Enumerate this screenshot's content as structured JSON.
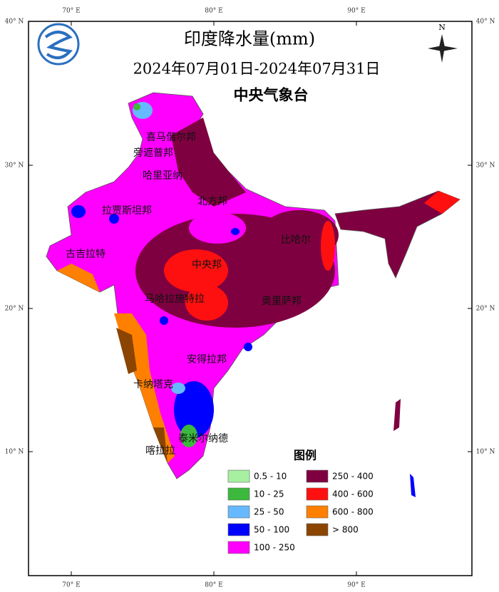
{
  "header": {
    "title": "印度降水量(mm)",
    "period": "2024年07月01日-2024年07月31日",
    "agency": "中央气象台"
  },
  "compass": "N",
  "graticule": {
    "top": [
      "70° E",
      "80° E",
      "90° E"
    ],
    "bottom": [
      "70° E",
      "80° E",
      "90° E"
    ],
    "left": [
      "40° N",
      "30° N",
      "20° N",
      "10° N"
    ],
    "right": [
      "40° N",
      "30° N",
      "20° N",
      "10° N"
    ]
  },
  "regions": [
    "喜马偕尔邦",
    "旁遮普邦",
    "哈里亚纳",
    "拉贾斯坦邦",
    "北方邦",
    "比哈尔",
    "古吉拉特",
    "中央邦",
    "马哈拉施特拉",
    "奥里萨邦",
    "安得拉邦",
    "卡纳塔克",
    "泰米尔纳德",
    "喀拉拉"
  ],
  "legend": {
    "title": "图例",
    "items": [
      {
        "label": "0.5 - 10",
        "color": "#a6f0a0"
      },
      {
        "label": "10 - 25",
        "color": "#3cb83c"
      },
      {
        "label": "25 - 50",
        "color": "#66b8ff"
      },
      {
        "label": "50 - 100",
        "color": "#0000ff"
      },
      {
        "label": "100 - 250",
        "color": "#ff00ff"
      },
      {
        "label": "250 - 400",
        "color": "#7f0040"
      },
      {
        "label": "400 - 600",
        "color": "#ff1010"
      },
      {
        "label": "600 - 800",
        "color": "#ff8000"
      },
      {
        "label": "> 800",
        "color": "#8b4500"
      }
    ]
  }
}
